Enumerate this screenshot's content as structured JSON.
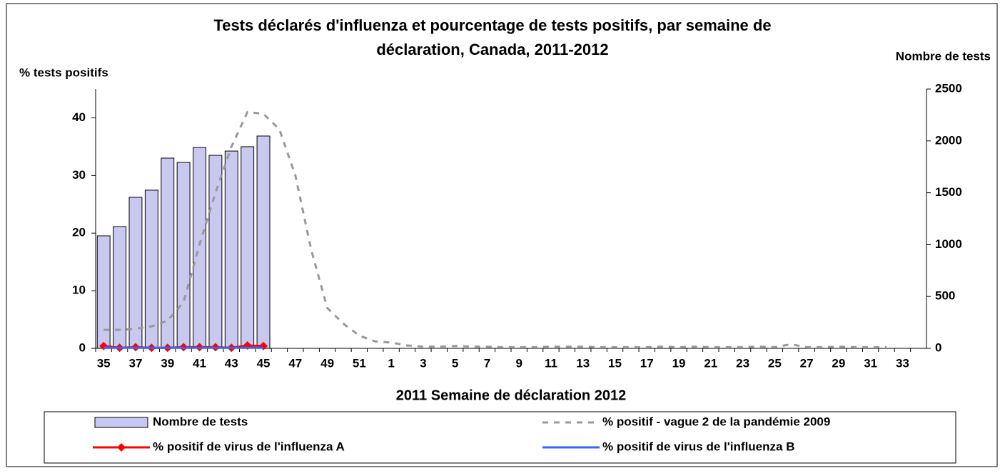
{
  "chart_data": {
    "type": "bar-line",
    "title": [
      "Tests déclarés d'influenza et pourcentage de tests positifs, par semaine de",
      "déclaration, Canada,  2011-2012"
    ],
    "y_label": "% tests positifs",
    "y2_label": "Nombre de tests",
    "x_label": "2011  Semaine de déclaration   2012",
    "categories": [
      "35",
      null,
      "37",
      null,
      "39",
      null,
      "41",
      null,
      "43",
      null,
      "45",
      null,
      "47",
      null,
      "49",
      null,
      "51",
      null,
      "1",
      null,
      "3",
      null,
      "5",
      null,
      "7",
      null,
      "9",
      null,
      "11",
      null,
      "13",
      null,
      "15",
      null,
      "17",
      null,
      "19",
      null,
      "21",
      null,
      "23",
      null,
      "25",
      null,
      "27",
      null,
      "29",
      null,
      "31",
      null,
      "33",
      null
    ],
    "ylim": [
      0,
      45
    ],
    "yticks": [
      0,
      10,
      20,
      30,
      40
    ],
    "y2lim": [
      0,
      2500
    ],
    "y2ticks": [
      0,
      500,
      1000,
      1500,
      2000,
      2500
    ],
    "series": [
      {
        "name": "Nombre de tests",
        "type": "bar",
        "axis": "y2",
        "color": "#c8c8f0",
        "values": [
          1085,
          1174,
          1456,
          1525,
          1834,
          1793,
          1937,
          1861,
          1902,
          1944,
          2047,
          null,
          null,
          null,
          null,
          null,
          null,
          null,
          null,
          null,
          null,
          null,
          null,
          null,
          null,
          null,
          null,
          null,
          null,
          null,
          null,
          null,
          null,
          null,
          null,
          null,
          null,
          null,
          null,
          null,
          null,
          null,
          null,
          null,
          null,
          null,
          null,
          null,
          null,
          null,
          null,
          null
        ]
      },
      {
        "name": "% positif - vague 2 de la pandémie 2009",
        "type": "dashed",
        "color": "#999999",
        "values": [
          3.2,
          3.2,
          3.4,
          3.8,
          4.8,
          8,
          18,
          27,
          35,
          41,
          40.7,
          38,
          30,
          17,
          7,
          4.3,
          2.2,
          1.2,
          1,
          0.5,
          0.3,
          0.3,
          0.4,
          0.3,
          0.3,
          0.2,
          0.2,
          0.2,
          0.3,
          0.3,
          0.3,
          0.2,
          0.2,
          0.2,
          0.2,
          0.3,
          0.2,
          0.3,
          0.2,
          0.2,
          0.2,
          0.3,
          0.2,
          0.7,
          0.2,
          0.2,
          0.3,
          0.2,
          0.2,
          0.2,
          null,
          null
        ]
      },
      {
        "name": "% positif de virus de l'influenza A",
        "type": "line-marker",
        "color": "#ff0000",
        "values": [
          0.4,
          0.1,
          0.2,
          0.1,
          0.1,
          0.2,
          0.2,
          0.2,
          0.1,
          0.5,
          0.4,
          null,
          null,
          null,
          null,
          null,
          null,
          null,
          null,
          null,
          null,
          null,
          null,
          null,
          null,
          null,
          null,
          null,
          null,
          null,
          null,
          null,
          null,
          null,
          null,
          null,
          null,
          null,
          null,
          null,
          null,
          null,
          null,
          null,
          null,
          null,
          null,
          null,
          null,
          null,
          null,
          null
        ]
      },
      {
        "name": "% positif de virus de l'influenza B",
        "type": "line",
        "color": "#3366ff",
        "values": [
          0.1,
          0.1,
          0.1,
          0.1,
          0.1,
          0.1,
          0.1,
          0.1,
          0.1,
          0.1,
          0.1,
          null,
          null,
          null,
          null,
          null,
          null,
          null,
          null,
          null,
          null,
          null,
          null,
          null,
          null,
          null,
          null,
          null,
          null,
          null,
          null,
          null,
          null,
          null,
          null,
          null,
          null,
          null,
          null,
          null,
          null,
          null,
          null,
          null,
          null,
          null,
          null,
          null,
          null,
          null,
          null,
          null
        ]
      }
    ]
  }
}
